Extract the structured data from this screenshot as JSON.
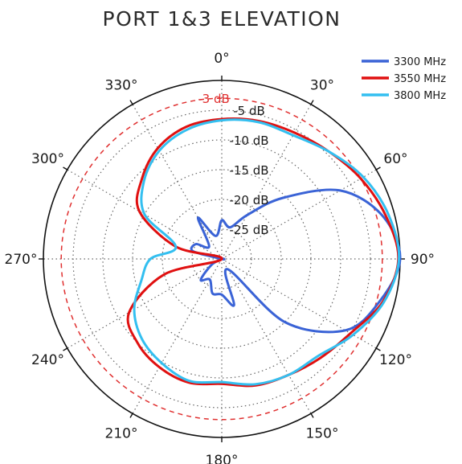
{
  "chart_data": {
    "type": "polar",
    "title": "PORT 1&3 ELEVATION",
    "angle_labels": [
      {
        "angle": 0,
        "label": "0°"
      },
      {
        "angle": 30,
        "label": "30°"
      },
      {
        "angle": 60,
        "label": "60°"
      },
      {
        "angle": 90,
        "label": "90°"
      },
      {
        "angle": 120,
        "label": "120°"
      },
      {
        "angle": 150,
        "label": "150°"
      },
      {
        "angle": 180,
        "label": "180°"
      },
      {
        "angle": 210,
        "label": "210°"
      },
      {
        "angle": 240,
        "label": "240°"
      },
      {
        "angle": 270,
        "label": "270°"
      },
      {
        "angle": 300,
        "label": "300°"
      },
      {
        "angle": 330,
        "label": "330°"
      }
    ],
    "radial_range": [
      -30,
      0
    ],
    "radial_ticks": [
      {
        "value": -5,
        "label": "-5 dB"
      },
      {
        "value": -10,
        "label": "-10 dB"
      },
      {
        "value": -15,
        "label": "-15 dB"
      },
      {
        "value": -20,
        "label": "-20 dB"
      },
      {
        "value": -25,
        "label": "-25 dB"
      }
    ],
    "reference_circle": {
      "value": -3,
      "label": "-3 dB",
      "color": "#e03030"
    },
    "grid": true,
    "legend_position": "top-right",
    "angles": [
      0,
      15,
      30,
      45,
      60,
      75,
      90,
      105,
      120,
      135,
      150,
      165,
      180,
      195,
      210,
      225,
      240,
      255,
      270,
      285,
      300,
      315,
      330,
      345
    ],
    "series": [
      {
        "name": "3300 MHz",
        "color": "#3a63d6",
        "values": [
          -23.5,
          -24.5,
          -21.5,
          -15.5,
          -7,
          -2,
          0,
          -2.5,
          -6,
          -15,
          -28,
          -22,
          -24,
          -24,
          -26,
          -25,
          -28,
          -30,
          -30,
          -25,
          -25,
          -27,
          -22,
          -26
        ]
      },
      {
        "name": "3550 MHz",
        "color": "#e01010",
        "values": [
          -6.5,
          -6,
          -5.5,
          -4.5,
          -3,
          -1.5,
          -0.3,
          -2,
          -5,
          -6.5,
          -7.5,
          -8,
          -9,
          -8.5,
          -9,
          -10,
          -12,
          -20,
          -30,
          -22,
          -14,
          -11,
          -8.5,
          -7
        ]
      },
      {
        "name": "3800 MHz",
        "color": "#33bff0",
        "values": [
          -6.7,
          -6.2,
          -6,
          -4.5,
          -2.5,
          -1,
          -0.2,
          -1.8,
          -4.5,
          -7,
          -7.5,
          -8.2,
          -9.3,
          -8.8,
          -9.8,
          -11,
          -13,
          -16,
          -18,
          -22,
          -15,
          -11.5,
          -9,
          -7.5
        ]
      }
    ]
  }
}
